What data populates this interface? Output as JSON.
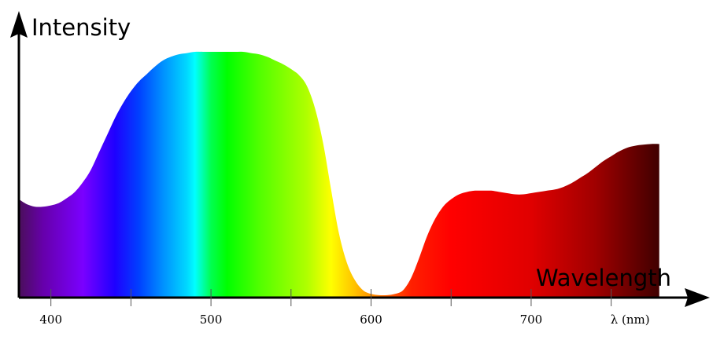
{
  "chart_data": {
    "type": "area",
    "title": "",
    "xlabel": "Wavelength",
    "ylabel": "Intensity",
    "xlim": [
      380,
      790
    ],
    "ylim": [
      0,
      100
    ],
    "grid": false,
    "legend": "none",
    "x_ticks": [
      {
        "value": 400,
        "label": "400"
      },
      {
        "value": 450,
        "label": ""
      },
      {
        "value": 500,
        "label": "500"
      },
      {
        "value": 550,
        "label": ""
      },
      {
        "value": 600,
        "label": "600"
      },
      {
        "value": 650,
        "label": ""
      },
      {
        "value": 700,
        "label": "700"
      },
      {
        "value": 750,
        "label": "λ (nm)"
      }
    ],
    "x": [
      380,
      385,
      390,
      395,
      400,
      405,
      410,
      415,
      420,
      425,
      430,
      435,
      440,
      445,
      450,
      455,
      460,
      465,
      470,
      475,
      480,
      485,
      490,
      495,
      500,
      505,
      510,
      515,
      520,
      525,
      530,
      535,
      540,
      545,
      550,
      555,
      560,
      565,
      570,
      575,
      580,
      585,
      590,
      595,
      600,
      605,
      610,
      615,
      620,
      625,
      630,
      635,
      640,
      645,
      650,
      655,
      660,
      665,
      670,
      675,
      680,
      685,
      690,
      695,
      700,
      705,
      710,
      715,
      720,
      725,
      730,
      735,
      740,
      745,
      750,
      755,
      760,
      765,
      770,
      775,
      780
    ],
    "y": [
      40,
      38,
      37,
      37,
      37.5,
      38.5,
      40.5,
      43,
      47,
      52,
      59,
      66,
      73,
      79,
      84,
      88,
      91,
      94,
      96.5,
      98,
      99,
      99.5,
      100,
      100,
      100,
      100,
      100,
      100,
      100,
      99.5,
      99,
      98,
      96.5,
      95,
      93,
      90.5,
      86,
      77,
      63,
      44,
      26,
      14,
      7,
      3,
      1.5,
      1,
      1,
      1.5,
      3,
      8,
      16,
      25,
      32,
      37,
      40,
      42,
      43,
      43.5,
      43.5,
      43.5,
      43,
      42.5,
      42,
      42,
      42.5,
      43,
      43.5,
      44,
      45,
      46.5,
      48.5,
      50.5,
      53,
      55.5,
      57.5,
      59.5,
      61,
      61.8,
      62.2,
      62.5,
      62.5
    ],
    "colors": {
      "axis": "#000000",
      "spectrum_stops": [
        {
          "nm": 380,
          "color": "#4a0f5a"
        },
        {
          "nm": 395,
          "color": "#6600aa"
        },
        {
          "nm": 420,
          "color": "#7a00ff"
        },
        {
          "nm": 440,
          "color": "#1e00ff"
        },
        {
          "nm": 455,
          "color": "#0040ff"
        },
        {
          "nm": 470,
          "color": "#0090ff"
        },
        {
          "nm": 485,
          "color": "#00d8ff"
        },
        {
          "nm": 490,
          "color": "#00ffff"
        },
        {
          "nm": 500,
          "color": "#00ff50"
        },
        {
          "nm": 510,
          "color": "#00ff00"
        },
        {
          "nm": 530,
          "color": "#50ff00"
        },
        {
          "nm": 560,
          "color": "#b0ff00"
        },
        {
          "nm": 575,
          "color": "#ffff00"
        },
        {
          "nm": 590,
          "color": "#ffc000"
        },
        {
          "nm": 605,
          "color": "#ff7a00"
        },
        {
          "nm": 625,
          "color": "#ff2000"
        },
        {
          "nm": 650,
          "color": "#ff0000"
        },
        {
          "nm": 700,
          "color": "#e00000"
        },
        {
          "nm": 740,
          "color": "#a00000"
        },
        {
          "nm": 780,
          "color": "#400000"
        }
      ]
    }
  }
}
